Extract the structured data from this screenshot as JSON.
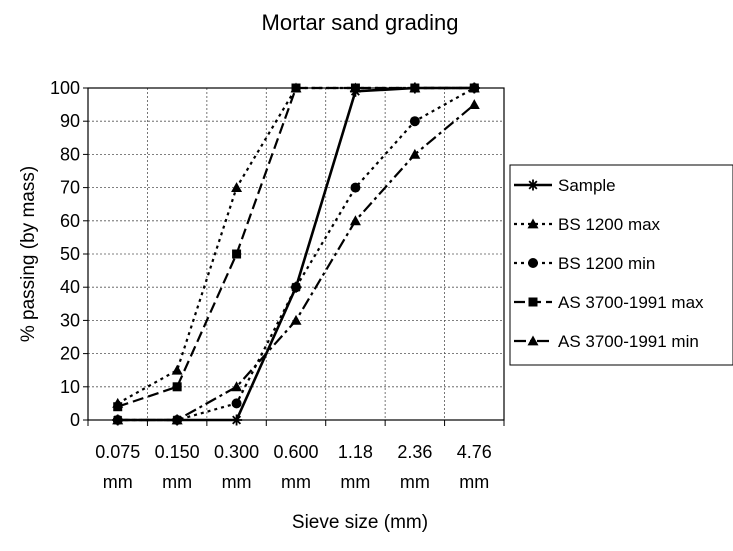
{
  "chart_data": {
    "type": "line",
    "title": "Mortar sand grading",
    "xlabel": "Sieve size (mm)",
    "ylabel": "% passing (by mass)",
    "categories": [
      "0.075 mm",
      "0.150 mm",
      "0.300 mm",
      "0.600 mm",
      "1.18 mm",
      "2.36 mm",
      "4.76 mm"
    ],
    "category_lines": [
      [
        "0.075",
        "mm"
      ],
      [
        "0.150",
        "mm"
      ],
      [
        "0.300",
        "mm"
      ],
      [
        "0.600",
        "mm"
      ],
      [
        "1.18",
        "mm"
      ],
      [
        "2.36",
        "mm"
      ],
      [
        "4.76",
        "mm"
      ]
    ],
    "ylim": [
      0,
      100
    ],
    "yticks": [
      0,
      10,
      20,
      30,
      40,
      50,
      60,
      70,
      80,
      90,
      100
    ],
    "grid": true,
    "legend_position": "right",
    "series": [
      {
        "name": "Sample",
        "values": [
          0,
          0,
          0,
          40,
          99,
          100,
          100
        ],
        "marker": "star",
        "dash": "solid"
      },
      {
        "name": "BS 1200 max",
        "values": [
          5,
          15,
          70,
          100,
          100,
          100,
          100
        ],
        "marker": "triangle",
        "dash": "dotted"
      },
      {
        "name": "BS 1200 min",
        "values": [
          0,
          0,
          5,
          40,
          70,
          90,
          100
        ],
        "marker": "circle",
        "dash": "dotted"
      },
      {
        "name": "AS 3700-1991 max",
        "values": [
          4,
          10,
          50,
          100,
          100,
          100,
          100
        ],
        "marker": "square",
        "dash": "dashed"
      },
      {
        "name": "AS 3700-1991 min",
        "values": [
          0,
          0,
          10,
          30,
          60,
          80,
          95
        ],
        "marker": "triangle",
        "dash": "dashdot"
      }
    ]
  }
}
